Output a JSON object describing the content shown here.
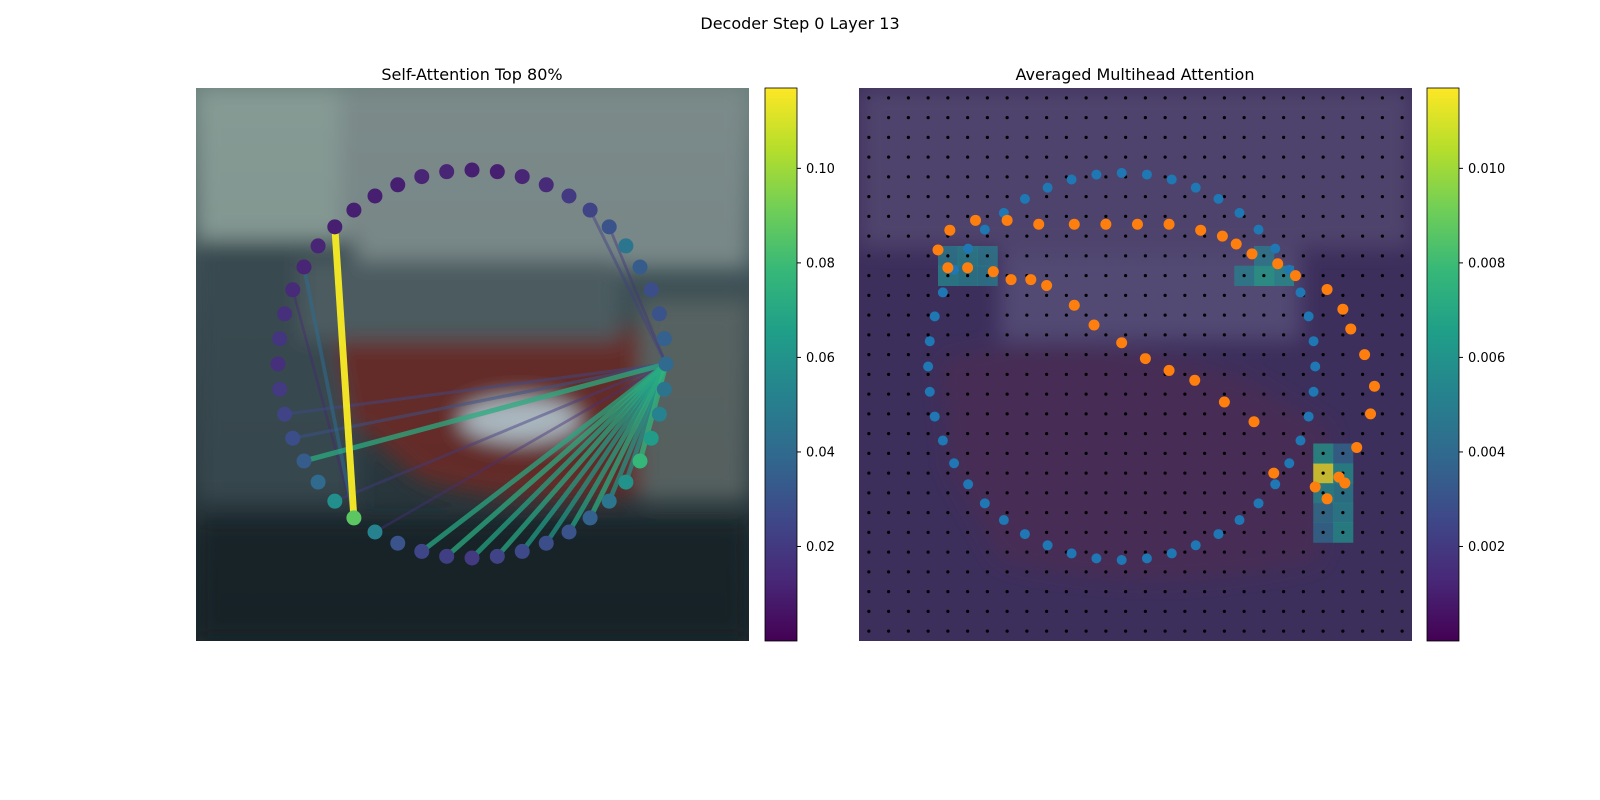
{
  "figure": {
    "suptitle": "Decoder Step 0 Layer 13"
  },
  "colors": {
    "viridis": [
      "#440154",
      "#482878",
      "#3e4989",
      "#31688e",
      "#26828e",
      "#1f9e89",
      "#35b779",
      "#6ece58",
      "#b5de2b",
      "#fde725"
    ],
    "sa_background": [
      "#6a7f7a",
      "#3f5257",
      "#2b3a40",
      "#1d282d"
    ],
    "sa_car": "#6a2a28",
    "ma_background": "#3d2f5c",
    "blue_points": "#1f77b4",
    "orange_points": "#ff7f0e",
    "grid_dots": "#000000"
  },
  "chart_data": [
    {
      "type": "scatter",
      "title": "Self-Attention Top 80%",
      "num_points": 48,
      "shape": "circle of query points over a blurred camera image",
      "point_values": [
        0.016,
        0.02,
        0.024,
        0.028,
        0.034,
        0.04,
        0.058,
        0.087,
        0.052,
        0.03,
        0.025,
        0.022,
        0.02,
        0.024,
        0.026,
        0.028,
        0.03,
        0.036,
        0.046,
        0.06,
        0.078,
        0.064,
        0.052,
        0.045,
        0.04,
        0.036,
        0.03,
        0.028,
        0.034,
        0.046,
        0.03,
        0.024,
        0.02,
        0.014,
        0.012,
        0.01,
        0.01,
        0.012,
        0.012,
        0.01,
        0.01,
        0.01,
        0.01,
        0.012,
        0.012,
        0.014,
        0.016,
        0.018
      ],
      "lines": [
        {
          "from": 7,
          "to": 42,
          "weight": 0.115
        },
        {
          "from": 7,
          "to": 44,
          "weight": 0.04
        },
        {
          "from": 7,
          "to": 42,
          "weight": 0.02
        },
        {
          "from": 7,
          "to": 45,
          "weight": 0.012
        },
        {
          "from": 24,
          "to": 4,
          "weight": 0.072
        },
        {
          "from": 24,
          "to": 10,
          "weight": 0.07
        },
        {
          "from": 24,
          "to": 11,
          "weight": 0.072
        },
        {
          "from": 24,
          "to": 12,
          "weight": 0.068
        },
        {
          "from": 24,
          "to": 13,
          "weight": 0.07
        },
        {
          "from": 24,
          "to": 14,
          "weight": 0.066
        },
        {
          "from": 24,
          "to": 15,
          "weight": 0.064
        },
        {
          "from": 24,
          "to": 16,
          "weight": 0.068
        },
        {
          "from": 24,
          "to": 17,
          "weight": 0.072
        },
        {
          "from": 24,
          "to": 18,
          "weight": 0.062
        },
        {
          "from": 24,
          "to": 19,
          "weight": 0.06
        },
        {
          "from": 24,
          "to": 20,
          "weight": 0.076
        },
        {
          "from": 24,
          "to": 3,
          "weight": 0.03
        },
        {
          "from": 24,
          "to": 2,
          "weight": 0.026
        },
        {
          "from": 24,
          "to": 31,
          "weight": 0.022
        },
        {
          "from": 24,
          "to": 6,
          "weight": 0.02
        },
        {
          "from": 24,
          "to": 30,
          "weight": 0.018
        },
        {
          "from": 24,
          "to": 8,
          "weight": 0.016
        }
      ],
      "colorbar": {
        "min": 0.0,
        "max": 0.117,
        "ticks": [
          0.02,
          0.04,
          0.06,
          0.08,
          0.1
        ],
        "tick_labels": [
          "0.02",
          "0.04",
          "0.06",
          "0.08",
          "0.10"
        ]
      }
    },
    {
      "type": "heatmap",
      "title": "Averaged Multihead Attention",
      "grid": {
        "rows": 28,
        "cols": 28
      },
      "heatmap_cells": [
        {
          "row": 19,
          "col": 23,
          "value": 0.0115
        },
        {
          "row": 18,
          "col": 23,
          "value": 0.0062
        },
        {
          "row": 19,
          "col": 24,
          "value": 0.006
        },
        {
          "row": 20,
          "col": 23,
          "value": 0.0058
        },
        {
          "row": 20,
          "col": 24,
          "value": 0.0052
        },
        {
          "row": 21,
          "col": 24,
          "value": 0.0055
        },
        {
          "row": 22,
          "col": 24,
          "value": 0.006
        },
        {
          "row": 21,
          "col": 23,
          "value": 0.0045
        },
        {
          "row": 18,
          "col": 24,
          "value": 0.004
        },
        {
          "row": 22,
          "col": 23,
          "value": 0.0042
        },
        {
          "row": 9,
          "col": 20,
          "value": 0.0066
        },
        {
          "row": 9,
          "col": 21,
          "value": 0.0058
        },
        {
          "row": 9,
          "col": 19,
          "value": 0.0052
        },
        {
          "row": 8,
          "col": 20,
          "value": 0.005
        },
        {
          "row": 9,
          "col": 4,
          "value": 0.0055
        },
        {
          "row": 9,
          "col": 5,
          "value": 0.0052
        },
        {
          "row": 8,
          "col": 4,
          "value": 0.005
        },
        {
          "row": 8,
          "col": 5,
          "value": 0.0054
        },
        {
          "row": 9,
          "col": 6,
          "value": 0.005
        },
        {
          "row": 8,
          "col": 6,
          "value": 0.005
        }
      ],
      "blue_points": {
        "count": 48,
        "shape": "circle of query points",
        "center_x": 12.8,
        "center_y": 13.6,
        "radius_x": 9.8,
        "radius_y": 9.8
      },
      "orange_points": {
        "description": "predicted curve in reference-point units",
        "x": [
          3.5,
          4.1,
          5.4,
          7.0,
          8.6,
          10.4,
          12.0,
          13.6,
          15.2,
          16.8,
          17.9,
          18.6,
          19.4,
          20.7,
          21.6,
          23.2,
          24.0,
          24.4,
          25.1,
          25.6,
          25.4,
          24.7,
          24.1,
          23.8,
          23.2,
          22.6,
          20.5,
          19.5,
          18.0,
          16.5,
          15.2,
          14.0,
          12.8,
          11.4,
          10.4,
          9.0,
          8.2,
          7.2,
          6.3,
          5.0,
          4.0
        ],
        "y": [
          7.7,
          6.7,
          6.2,
          6.2,
          6.4,
          6.4,
          6.4,
          6.4,
          6.4,
          6.7,
          7.0,
          7.4,
          7.9,
          8.4,
          9.0,
          9.7,
          10.7,
          11.7,
          13.0,
          14.6,
          16.0,
          17.7,
          19.5,
          19.2,
          20.3,
          19.7,
          19.0,
          16.4,
          15.4,
          14.3,
          13.8,
          13.2,
          12.4,
          11.5,
          10.5,
          9.5,
          9.2,
          9.2,
          8.8,
          8.6,
          8.6
        ]
      },
      "colorbar": {
        "min": 0.0,
        "max": 0.0117,
        "ticks": [
          0.002,
          0.004,
          0.006,
          0.008,
          0.01
        ],
        "tick_labels": [
          "0.002",
          "0.004",
          "0.006",
          "0.008",
          "0.010"
        ]
      }
    }
  ]
}
